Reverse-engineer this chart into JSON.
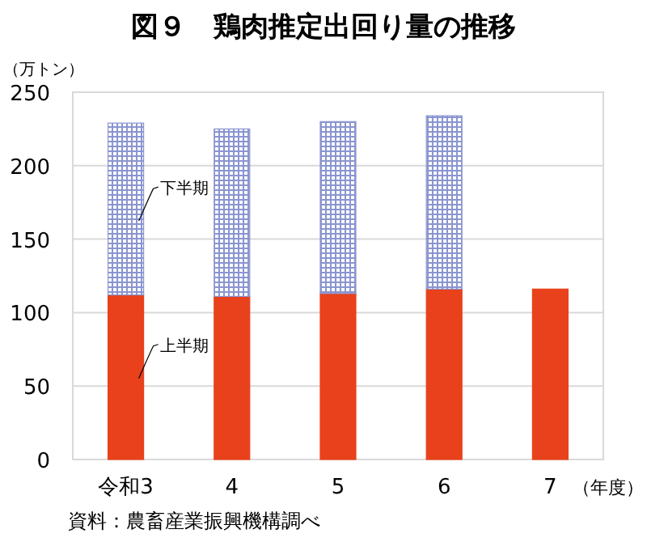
{
  "chart_data": {
    "type": "bar",
    "stacked": true,
    "title": "図９　鶏肉推定出回り量の推移",
    "ylabel": "（万トン）",
    "xlabel": "（年度）",
    "categories": [
      "令和3",
      "4",
      "5",
      "6",
      "7"
    ],
    "series": [
      {
        "name": "上半期",
        "color": "#e8411c",
        "values": [
          112,
          111,
          113,
          116,
          116
        ]
      },
      {
        "name": "下半期",
        "color": "#8a95d0",
        "values": [
          117,
          114,
          117,
          118,
          null
        ]
      }
    ],
    "ylim": [
      0,
      250
    ],
    "yticks": [
      0,
      50,
      100,
      150,
      200,
      250
    ],
    "grid": "y",
    "annotations": [
      "資料：農畜産業振興機構調べ"
    ]
  }
}
